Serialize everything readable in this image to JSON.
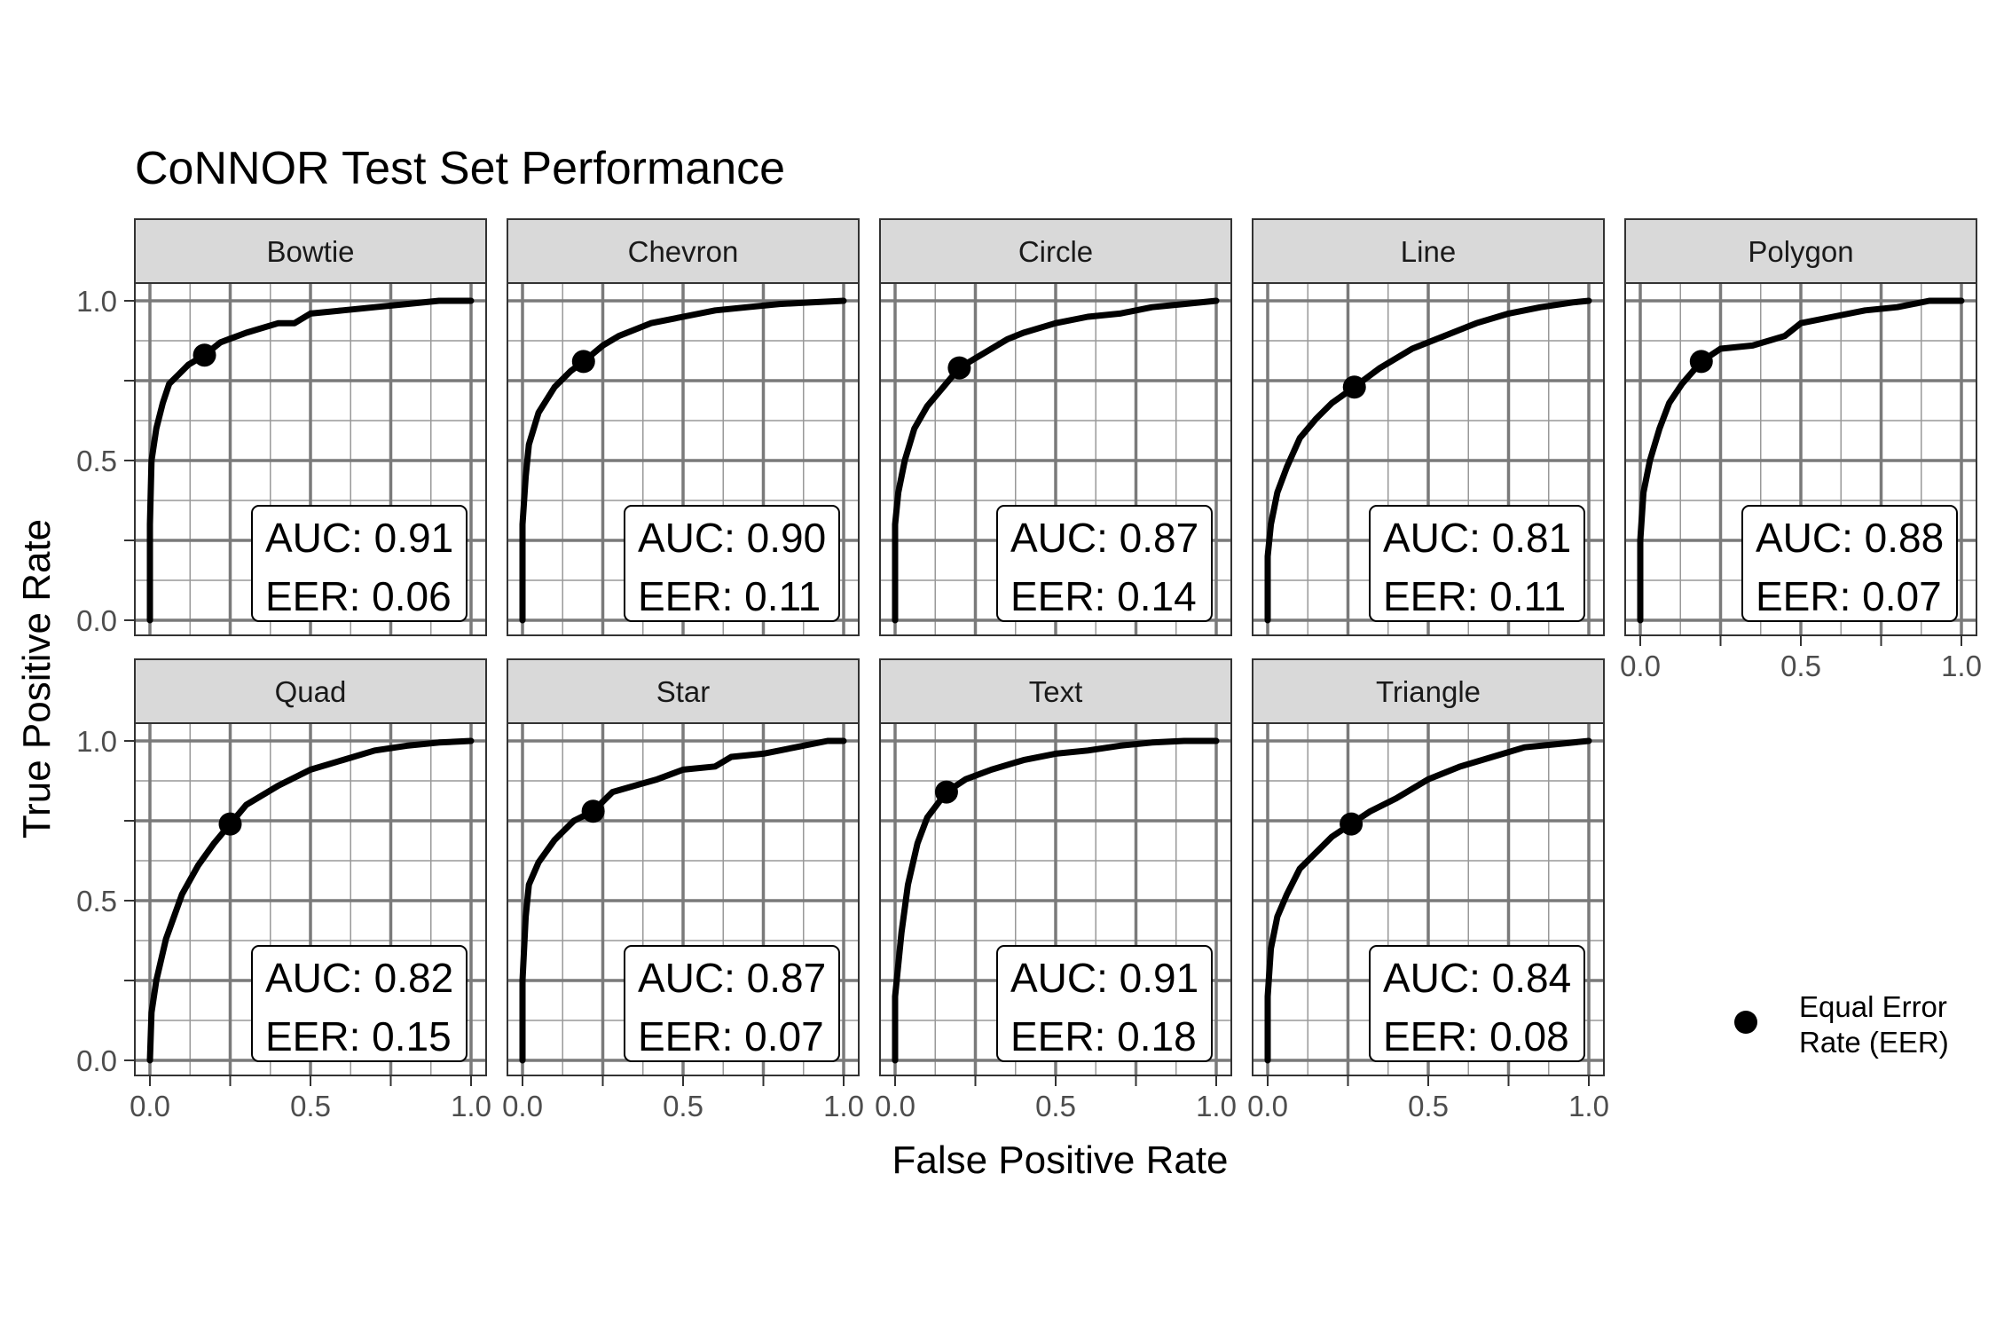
{
  "chart_data": {
    "type": "line",
    "title": "CoNNOR Test Set Performance",
    "xlabel": "False Positive Rate",
    "ylabel": "True Positive Rate",
    "xlim": [
      0,
      1
    ],
    "ylim": [
      0,
      1
    ],
    "x_ticks": [
      "0.0",
      "0.5",
      "1.0"
    ],
    "y_ticks": [
      "0.0",
      "0.5",
      "1.0"
    ],
    "grid": true,
    "legend": {
      "label": "Equal Error Rate (EER)",
      "label_lines": [
        "Equal Error",
        "Rate (EER)"
      ],
      "placement": "bottom-right"
    },
    "panels": [
      {
        "name": "Bowtie",
        "auc_label": "AUC: 0.91",
        "eer_label": "EER: 0.06",
        "eer_point": [
          0.17,
          0.83
        ],
        "roc": [
          [
            0,
            0
          ],
          [
            0,
            0.3
          ],
          [
            0.005,
            0.5
          ],
          [
            0.02,
            0.6
          ],
          [
            0.04,
            0.68
          ],
          [
            0.06,
            0.74
          ],
          [
            0.09,
            0.77
          ],
          [
            0.12,
            0.8
          ],
          [
            0.17,
            0.83
          ],
          [
            0.22,
            0.87
          ],
          [
            0.3,
            0.9
          ],
          [
            0.4,
            0.93
          ],
          [
            0.45,
            0.93
          ],
          [
            0.5,
            0.96
          ],
          [
            0.6,
            0.97
          ],
          [
            0.7,
            0.98
          ],
          [
            0.8,
            0.99
          ],
          [
            0.9,
            1.0
          ],
          [
            1,
            1
          ]
        ]
      },
      {
        "name": "Chevron",
        "auc_label": "AUC: 0.90",
        "eer_label": "EER: 0.11",
        "eer_point": [
          0.19,
          0.81
        ],
        "roc": [
          [
            0,
            0
          ],
          [
            0,
            0.3
          ],
          [
            0.01,
            0.45
          ],
          [
            0.02,
            0.55
          ],
          [
            0.05,
            0.65
          ],
          [
            0.1,
            0.73
          ],
          [
            0.15,
            0.78
          ],
          [
            0.19,
            0.81
          ],
          [
            0.25,
            0.86
          ],
          [
            0.3,
            0.89
          ],
          [
            0.4,
            0.93
          ],
          [
            0.5,
            0.95
          ],
          [
            0.6,
            0.97
          ],
          [
            0.7,
            0.98
          ],
          [
            0.8,
            0.99
          ],
          [
            0.9,
            0.995
          ],
          [
            1,
            1
          ]
        ]
      },
      {
        "name": "Circle",
        "auc_label": "AUC: 0.87",
        "eer_label": "EER: 0.14",
        "eer_point": [
          0.2,
          0.79
        ],
        "roc": [
          [
            0,
            0
          ],
          [
            0,
            0.3
          ],
          [
            0.01,
            0.4
          ],
          [
            0.03,
            0.5
          ],
          [
            0.06,
            0.6
          ],
          [
            0.1,
            0.67
          ],
          [
            0.15,
            0.73
          ],
          [
            0.2,
            0.79
          ],
          [
            0.25,
            0.82
          ],
          [
            0.3,
            0.85
          ],
          [
            0.35,
            0.88
          ],
          [
            0.4,
            0.9
          ],
          [
            0.5,
            0.93
          ],
          [
            0.6,
            0.95
          ],
          [
            0.7,
            0.96
          ],
          [
            0.8,
            0.98
          ],
          [
            0.9,
            0.99
          ],
          [
            1,
            1
          ]
        ]
      },
      {
        "name": "Line",
        "auc_label": "AUC: 0.81",
        "eer_label": "EER: 0.11",
        "eer_point": [
          0.27,
          0.73
        ],
        "roc": [
          [
            0,
            0
          ],
          [
            0,
            0.2
          ],
          [
            0.01,
            0.3
          ],
          [
            0.03,
            0.4
          ],
          [
            0.06,
            0.48
          ],
          [
            0.1,
            0.57
          ],
          [
            0.15,
            0.63
          ],
          [
            0.2,
            0.68
          ],
          [
            0.27,
            0.73
          ],
          [
            0.35,
            0.79
          ],
          [
            0.45,
            0.85
          ],
          [
            0.55,
            0.89
          ],
          [
            0.65,
            0.93
          ],
          [
            0.75,
            0.96
          ],
          [
            0.85,
            0.98
          ],
          [
            0.95,
            0.995
          ],
          [
            1,
            1
          ]
        ]
      },
      {
        "name": "Polygon",
        "auc_label": "AUC: 0.88",
        "eer_label": "EER: 0.07",
        "eer_point": [
          0.19,
          0.81
        ],
        "roc": [
          [
            0,
            0
          ],
          [
            0,
            0.25
          ],
          [
            0.01,
            0.4
          ],
          [
            0.03,
            0.5
          ],
          [
            0.06,
            0.6
          ],
          [
            0.09,
            0.68
          ],
          [
            0.13,
            0.74
          ],
          [
            0.19,
            0.81
          ],
          [
            0.25,
            0.85
          ],
          [
            0.35,
            0.86
          ],
          [
            0.45,
            0.89
          ],
          [
            0.5,
            0.93
          ],
          [
            0.6,
            0.95
          ],
          [
            0.7,
            0.97
          ],
          [
            0.8,
            0.98
          ],
          [
            0.9,
            1.0
          ],
          [
            1,
            1
          ]
        ]
      },
      {
        "name": "Quad",
        "auc_label": "AUC: 0.82",
        "eer_label": "EER: 0.15",
        "eer_point": [
          0.25,
          0.74
        ],
        "roc": [
          [
            0,
            0
          ],
          [
            0.005,
            0.15
          ],
          [
            0.02,
            0.25
          ],
          [
            0.05,
            0.38
          ],
          [
            0.1,
            0.52
          ],
          [
            0.15,
            0.61
          ],
          [
            0.2,
            0.68
          ],
          [
            0.25,
            0.74
          ],
          [
            0.3,
            0.8
          ],
          [
            0.4,
            0.86
          ],
          [
            0.5,
            0.91
          ],
          [
            0.6,
            0.94
          ],
          [
            0.7,
            0.97
          ],
          [
            0.8,
            0.985
          ],
          [
            0.9,
            0.995
          ],
          [
            1,
            1
          ]
        ]
      },
      {
        "name": "Star",
        "auc_label": "AUC: 0.87",
        "eer_label": "EER: 0.07",
        "eer_point": [
          0.22,
          0.78
        ],
        "roc": [
          [
            0,
            0
          ],
          [
            0,
            0.25
          ],
          [
            0.01,
            0.45
          ],
          [
            0.02,
            0.55
          ],
          [
            0.05,
            0.62
          ],
          [
            0.1,
            0.69
          ],
          [
            0.16,
            0.75
          ],
          [
            0.22,
            0.78
          ],
          [
            0.28,
            0.84
          ],
          [
            0.35,
            0.86
          ],
          [
            0.42,
            0.88
          ],
          [
            0.5,
            0.91
          ],
          [
            0.6,
            0.92
          ],
          [
            0.65,
            0.95
          ],
          [
            0.75,
            0.96
          ],
          [
            0.85,
            0.98
          ],
          [
            0.95,
            1.0
          ],
          [
            1,
            1
          ]
        ]
      },
      {
        "name": "Text",
        "auc_label": "AUC: 0.91",
        "eer_label": "EER: 0.18",
        "eer_point": [
          0.16,
          0.84
        ],
        "roc": [
          [
            0,
            0
          ],
          [
            0,
            0.2
          ],
          [
            0.02,
            0.4
          ],
          [
            0.04,
            0.55
          ],
          [
            0.07,
            0.68
          ],
          [
            0.1,
            0.76
          ],
          [
            0.16,
            0.84
          ],
          [
            0.22,
            0.88
          ],
          [
            0.3,
            0.91
          ],
          [
            0.4,
            0.94
          ],
          [
            0.5,
            0.96
          ],
          [
            0.6,
            0.97
          ],
          [
            0.7,
            0.985
          ],
          [
            0.8,
            0.995
          ],
          [
            0.9,
            1.0
          ],
          [
            1,
            1
          ]
        ]
      },
      {
        "name": "Triangle",
        "auc_label": "AUC: 0.84",
        "eer_label": "EER: 0.08",
        "eer_point": [
          0.26,
          0.74
        ],
        "roc": [
          [
            0,
            0
          ],
          [
            0,
            0.2
          ],
          [
            0.01,
            0.35
          ],
          [
            0.03,
            0.45
          ],
          [
            0.06,
            0.52
          ],
          [
            0.1,
            0.6
          ],
          [
            0.15,
            0.65
          ],
          [
            0.2,
            0.7
          ],
          [
            0.26,
            0.74
          ],
          [
            0.32,
            0.78
          ],
          [
            0.4,
            0.82
          ],
          [
            0.5,
            0.88
          ],
          [
            0.6,
            0.92
          ],
          [
            0.7,
            0.95
          ],
          [
            0.8,
            0.98
          ],
          [
            0.9,
            0.99
          ],
          [
            1,
            1
          ]
        ]
      }
    ]
  }
}
